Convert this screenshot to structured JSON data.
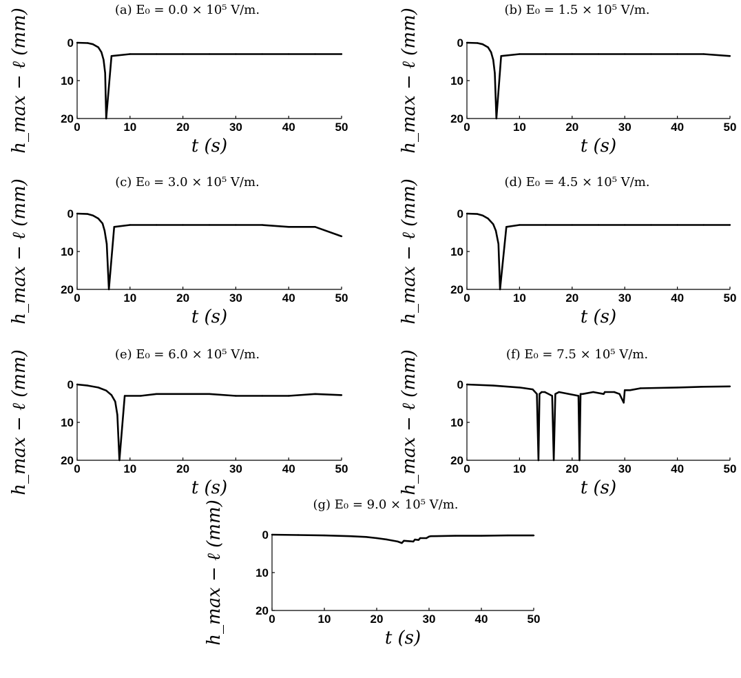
{
  "chart_data": [
    {
      "type": "line",
      "caption": "(a) E₀ = 0.0 × 10⁵ V/m.",
      "ylabel": "h_max − ℓ (mm)",
      "xlabel": "t (s)",
      "xlim": [
        0,
        50
      ],
      "ylim": [
        0,
        20
      ],
      "y_inverted": true,
      "xticks": [
        "0",
        "10",
        "20",
        "30",
        "40",
        "50"
      ],
      "yticks": [
        "0",
        "10",
        "20"
      ],
      "grid": false,
      "x": [
        0,
        2,
        3,
        4,
        4.6,
        5.0,
        5.3,
        5.5,
        6.5,
        10,
        15,
        20,
        25,
        30,
        35,
        40,
        45,
        50
      ],
      "values": [
        0,
        0.1,
        0.4,
        1.2,
        2.5,
        4.5,
        8,
        20,
        3.5,
        3,
        3,
        3,
        3,
        3,
        3,
        3,
        3,
        3
      ]
    },
    {
      "type": "line",
      "caption": "(b) E₀ = 1.5 × 10⁵ V/m.",
      "ylabel": "h_max − ℓ (mm)",
      "xlabel": "t (s)",
      "xlim": [
        0,
        50
      ],
      "ylim": [
        0,
        20
      ],
      "y_inverted": true,
      "xticks": [
        "0",
        "10",
        "20",
        "30",
        "40",
        "50"
      ],
      "yticks": [
        "0",
        "10",
        "20"
      ],
      "grid": false,
      "x": [
        0,
        2,
        3,
        4,
        4.6,
        5.0,
        5.3,
        5.6,
        6.5,
        10,
        15,
        20,
        25,
        30,
        35,
        40,
        45,
        50
      ],
      "values": [
        0,
        0.1,
        0.4,
        1.2,
        2.5,
        4.5,
        8,
        20,
        3.5,
        3,
        3,
        3,
        3,
        3,
        3,
        3,
        3,
        3.5
      ]
    },
    {
      "type": "line",
      "caption": "(c) E₀ = 3.0 × 10⁵ V/m.",
      "ylabel": "h_max − ℓ (mm)",
      "xlabel": "t (s)",
      "xlim": [
        0,
        50
      ],
      "ylim": [
        0,
        20
      ],
      "y_inverted": true,
      "xticks": [
        "0",
        "10",
        "20",
        "30",
        "40",
        "50"
      ],
      "yticks": [
        "0",
        "10",
        "20"
      ],
      "grid": false,
      "x": [
        0,
        2,
        3,
        4,
        4.8,
        5.2,
        5.6,
        6.0,
        7,
        10,
        15,
        20,
        25,
        30,
        35,
        40,
        45,
        50
      ],
      "values": [
        0,
        0.1,
        0.5,
        1.3,
        2.6,
        4.5,
        8,
        20,
        3.5,
        3,
        3,
        3,
        3,
        3,
        3,
        3.5,
        3.5,
        6
      ]
    },
    {
      "type": "line",
      "caption": "(d) E₀ = 4.5 × 10⁵ V/m.",
      "ylabel": "h_max − ℓ (mm)",
      "xlabel": "t (s)",
      "xlim": [
        0,
        50
      ],
      "ylim": [
        0,
        20
      ],
      "y_inverted": true,
      "xticks": [
        "0",
        "10",
        "20",
        "30",
        "40",
        "50"
      ],
      "yticks": [
        "0",
        "10",
        "20"
      ],
      "grid": false,
      "x": [
        0,
        2,
        3,
        4,
        5.0,
        5.5,
        6.0,
        6.3,
        7.5,
        10,
        15,
        20,
        25,
        30,
        35,
        40,
        45,
        50
      ],
      "values": [
        0,
        0.1,
        0.5,
        1.3,
        2.8,
        4.5,
        8,
        20,
        3.5,
        3,
        3,
        3,
        3,
        3,
        3,
        3,
        3,
        3
      ]
    },
    {
      "type": "line",
      "caption": "(e) E₀ = 6.0 × 10⁵ V/m.",
      "ylabel": "h_max − ℓ (mm)",
      "xlabel": "t (s)",
      "xlim": [
        0,
        50
      ],
      "ylim": [
        0,
        20
      ],
      "y_inverted": true,
      "xticks": [
        "0",
        "10",
        "20",
        "30",
        "40",
        "50"
      ],
      "yticks": [
        "0",
        "10",
        "20"
      ],
      "grid": false,
      "x": [
        0,
        2,
        4,
        5.5,
        6.5,
        7.2,
        7.6,
        8.0,
        9,
        12,
        15,
        20,
        25,
        30,
        35,
        40,
        45,
        50
      ],
      "values": [
        0,
        0.3,
        0.8,
        1.6,
        2.8,
        4.5,
        8,
        20,
        3,
        3,
        2.5,
        2.5,
        2.5,
        3,
        3,
        3,
        2.5,
        2.8
      ]
    },
    {
      "type": "line",
      "caption": "(f) E₀ = 7.5 × 10⁵ V/m.",
      "ylabel": "h_max − ℓ (mm)",
      "xlabel": "t (s)",
      "xlim": [
        0,
        50
      ],
      "ylim": [
        0,
        20
      ],
      "y_inverted": true,
      "xticks": [
        "0",
        "10",
        "20",
        "30",
        "40",
        "50"
      ],
      "yticks": [
        "0",
        "10",
        "20"
      ],
      "grid": false,
      "x": [
        0,
        5,
        10,
        12.5,
        13.3,
        13.6,
        13.8,
        14.2,
        14.8,
        16.2,
        16.5,
        16.8,
        17.5,
        21.2,
        21.4,
        21.6,
        22,
        24,
        26,
        26.2,
        28,
        29,
        29.8,
        30,
        31,
        33,
        40,
        45,
        50
      ],
      "values": [
        0,
        0.3,
        0.8,
        1.3,
        2.5,
        20,
        2.5,
        2,
        2,
        3,
        20,
        2.5,
        2,
        3,
        20,
        2.5,
        2.5,
        2,
        2.5,
        2,
        2,
        2.5,
        4.8,
        1.5,
        1.5,
        1,
        0.8,
        0.6,
        0.5
      ]
    },
    {
      "type": "line",
      "caption": "(g) E₀ = 9.0 × 10⁵ V/m.",
      "ylabel": "h_max − ℓ (mm)",
      "xlabel": "t (s)",
      "xlim": [
        0,
        50
      ],
      "ylim": [
        0,
        20
      ],
      "y_inverted": true,
      "xticks": [
        "0",
        "10",
        "20",
        "30",
        "40",
        "50"
      ],
      "yticks": [
        "0",
        "10",
        "20"
      ],
      "grid": false,
      "x": [
        0,
        5,
        10,
        15,
        18,
        20,
        22,
        24,
        24.8,
        25.2,
        27,
        27.3,
        28,
        28.3,
        29.5,
        30,
        30.3,
        35,
        40,
        45,
        50
      ],
      "values": [
        0,
        0.1,
        0.2,
        0.4,
        0.6,
        0.9,
        1.3,
        1.8,
        2.2,
        1.6,
        1.8,
        1.3,
        1.4,
        0.9,
        0.9,
        0.5,
        0.4,
        0.3,
        0.3,
        0.2,
        0.2
      ]
    }
  ]
}
